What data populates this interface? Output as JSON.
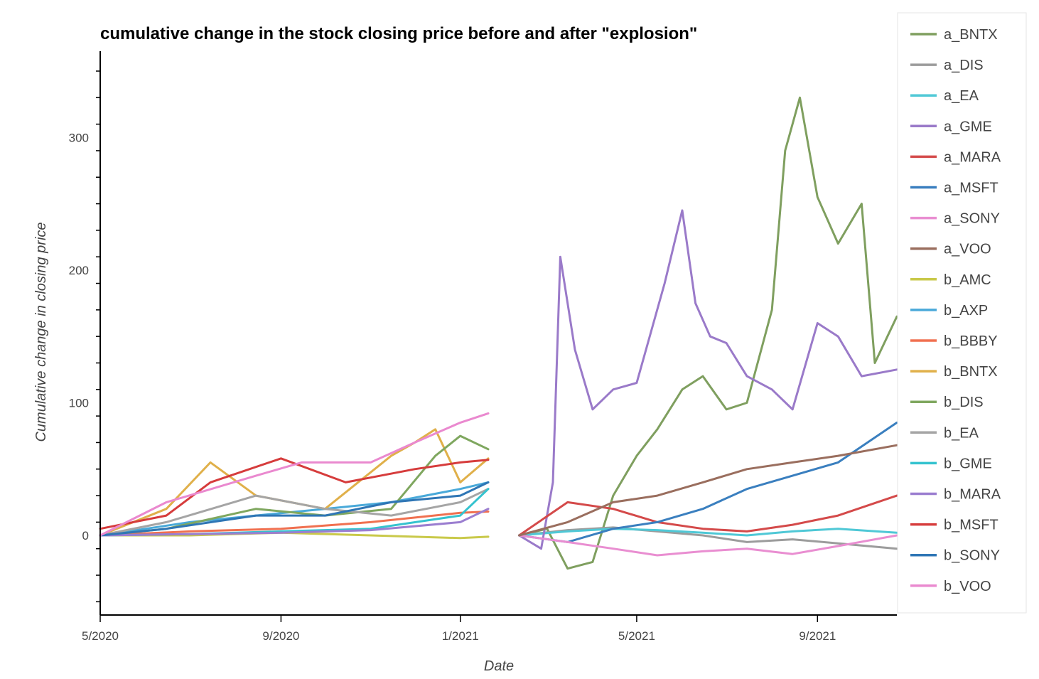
{
  "chart_data": {
    "type": "line",
    "title": "cumulative change in the stock closing price before and after \"explosion\"",
    "xlabel": "Date",
    "ylabel": "Cumulative change in closing price",
    "x_ticks": [
      "5/2020",
      "9/2020",
      "1/2021",
      "5/2021",
      "9/2021"
    ],
    "y_ticks": [
      0,
      100,
      200,
      300
    ],
    "xlim": [
      "2020-05-01",
      "2021-10-25"
    ],
    "ylim": [
      -60,
      365
    ],
    "legend": "right",
    "grid": false,
    "series": [
      {
        "name": "a_BNTX",
        "color": "#7f9f5f",
        "x": [
          "2021-02-10",
          "2021-03-01",
          "2021-03-15",
          "2021-04-01",
          "2021-04-15",
          "2021-05-01",
          "2021-05-15",
          "2021-06-01",
          "2021-06-15",
          "2021-07-01",
          "2021-07-15",
          "2021-08-01",
          "2021-08-10",
          "2021-08-20",
          "2021-09-01",
          "2021-09-15",
          "2021-10-01",
          "2021-10-10",
          "2021-10-25"
        ],
        "y": [
          0,
          5,
          -25,
          -20,
          30,
          60,
          80,
          110,
          120,
          95,
          100,
          170,
          290,
          330,
          255,
          220,
          250,
          130,
          165
        ]
      },
      {
        "name": "a_DIS",
        "color": "#9c9c9c",
        "x": [
          "2021-02-10",
          "2021-03-15",
          "2021-04-15",
          "2021-05-15",
          "2021-06-15",
          "2021-07-15",
          "2021-08-15",
          "2021-09-15",
          "2021-10-25"
        ],
        "y": [
          0,
          4,
          6,
          3,
          0,
          -5,
          -3,
          -6,
          -10
        ]
      },
      {
        "name": "a_EA",
        "color": "#4fc8d6",
        "x": [
          "2021-02-10",
          "2021-03-15",
          "2021-04-15",
          "2021-05-15",
          "2021-06-15",
          "2021-07-15",
          "2021-08-15",
          "2021-09-15",
          "2021-10-25"
        ],
        "y": [
          0,
          3,
          5,
          4,
          2,
          0,
          3,
          5,
          2
        ]
      },
      {
        "name": "a_GME",
        "color": "#9a7ac9",
        "x": [
          "2021-02-10",
          "2021-02-25",
          "2021-03-05",
          "2021-03-10",
          "2021-03-20",
          "2021-04-01",
          "2021-04-15",
          "2021-05-01",
          "2021-05-20",
          "2021-06-01",
          "2021-06-10",
          "2021-06-20",
          "2021-07-01",
          "2021-07-15",
          "2021-08-01",
          "2021-08-15",
          "2021-09-01",
          "2021-09-15",
          "2021-10-01",
          "2021-10-25"
        ],
        "y": [
          0,
          -10,
          40,
          210,
          140,
          95,
          110,
          115,
          190,
          245,
          175,
          150,
          145,
          120,
          110,
          95,
          160,
          150,
          120,
          125
        ]
      },
      {
        "name": "a_MARA",
        "color": "#d44a4a",
        "x": [
          "2021-02-10",
          "2021-03-15",
          "2021-04-15",
          "2021-05-15",
          "2021-06-15",
          "2021-07-15",
          "2021-08-15",
          "2021-09-15",
          "2021-10-25"
        ],
        "y": [
          0,
          25,
          20,
          10,
          5,
          3,
          8,
          15,
          30
        ]
      },
      {
        "name": "a_MSFT",
        "color": "#3a7fbf",
        "x": [
          "2021-02-10",
          "2021-03-15",
          "2021-04-15",
          "2021-05-15",
          "2021-06-15",
          "2021-07-15",
          "2021-08-15",
          "2021-09-15",
          "2021-10-25"
        ],
        "y": [
          0,
          -5,
          5,
          10,
          20,
          35,
          45,
          55,
          85
        ]
      },
      {
        "name": "a_SONY",
        "color": "#e98ed1",
        "x": [
          "2021-02-10",
          "2021-03-15",
          "2021-04-15",
          "2021-05-15",
          "2021-06-15",
          "2021-07-15",
          "2021-08-15",
          "2021-09-15",
          "2021-10-25"
        ],
        "y": [
          0,
          -5,
          -10,
          -15,
          -12,
          -10,
          -14,
          -8,
          0
        ]
      },
      {
        "name": "a_VOO",
        "color": "#9a6e5e",
        "x": [
          "2021-02-10",
          "2021-03-15",
          "2021-04-15",
          "2021-05-15",
          "2021-06-15",
          "2021-07-15",
          "2021-08-15",
          "2021-09-15",
          "2021-10-25"
        ],
        "y": [
          0,
          10,
          25,
          30,
          40,
          50,
          55,
          60,
          68
        ]
      },
      {
        "name": "b_AMC",
        "color": "#c9c94a",
        "x": [
          "2020-05-01",
          "2020-07-01",
          "2020-09-01",
          "2020-11-01",
          "2021-01-01",
          "2021-01-20"
        ],
        "y": [
          0,
          0,
          2,
          0,
          -2,
          -1
        ]
      },
      {
        "name": "b_AXP",
        "color": "#49a9d9",
        "x": [
          "2020-05-01",
          "2020-06-01",
          "2020-07-01",
          "2020-08-15",
          "2020-10-01",
          "2020-11-15",
          "2021-01-01",
          "2021-01-20"
        ],
        "y": [
          0,
          5,
          10,
          15,
          20,
          25,
          35,
          40
        ]
      },
      {
        "name": "b_BBBY",
        "color": "#f07050",
        "x": [
          "2020-05-01",
          "2020-07-01",
          "2020-09-01",
          "2020-11-01",
          "2021-01-01",
          "2021-01-20"
        ],
        "y": [
          0,
          3,
          5,
          10,
          17,
          18
        ]
      },
      {
        "name": "b_BNTX",
        "color": "#e0b04a",
        "x": [
          "2020-05-01",
          "2020-06-15",
          "2020-07-15",
          "2020-08-15",
          "2020-10-01",
          "2020-11-15",
          "2020-12-01",
          "2020-12-15",
          "2021-01-01",
          "2021-01-20"
        ],
        "y": [
          0,
          20,
          55,
          30,
          20,
          60,
          70,
          80,
          40,
          58
        ]
      },
      {
        "name": "b_DIS",
        "color": "#7fa75f",
        "x": [
          "2020-05-01",
          "2020-06-15",
          "2020-08-15",
          "2020-10-01",
          "2020-11-15",
          "2020-12-15",
          "2021-01-01",
          "2021-01-20"
        ],
        "y": [
          0,
          5,
          20,
          15,
          20,
          60,
          75,
          65
        ]
      },
      {
        "name": "b_EA",
        "color": "#a5a5a5",
        "x": [
          "2020-05-01",
          "2020-06-15",
          "2020-08-15",
          "2020-10-01",
          "2020-11-15",
          "2021-01-01",
          "2021-01-20"
        ],
        "y": [
          0,
          10,
          30,
          20,
          15,
          25,
          35
        ]
      },
      {
        "name": "b_GME",
        "color": "#35c3cf",
        "x": [
          "2020-05-01",
          "2020-07-01",
          "2020-09-01",
          "2020-11-01",
          "2021-01-01",
          "2021-01-20"
        ],
        "y": [
          0,
          1,
          3,
          5,
          15,
          35
        ]
      },
      {
        "name": "b_MARA",
        "color": "#9b7ed0",
        "x": [
          "2020-05-01",
          "2020-07-01",
          "2020-09-01",
          "2020-11-01",
          "2021-01-01",
          "2021-01-20"
        ],
        "y": [
          0,
          1,
          2,
          4,
          10,
          20
        ]
      },
      {
        "name": "b_MSFT",
        "color": "#d63c3c",
        "x": [
          "2020-05-01",
          "2020-06-15",
          "2020-07-15",
          "2020-09-01",
          "2020-10-15",
          "2020-12-01",
          "2021-01-01",
          "2021-01-20"
        ],
        "y": [
          5,
          15,
          40,
          58,
          40,
          50,
          55,
          57
        ]
      },
      {
        "name": "b_SONY",
        "color": "#2f76b5",
        "x": [
          "2020-05-01",
          "2020-06-15",
          "2020-08-15",
          "2020-10-01",
          "2020-11-15",
          "2021-01-01",
          "2021-01-20"
        ],
        "y": [
          0,
          5,
          15,
          15,
          25,
          30,
          40
        ]
      },
      {
        "name": "b_VOO",
        "color": "#ea89cf",
        "x": [
          "2020-05-01",
          "2020-06-15",
          "2020-08-15",
          "2020-09-15",
          "2020-11-01",
          "2020-12-01",
          "2021-01-01",
          "2021-01-20"
        ],
        "y": [
          0,
          25,
          45,
          55,
          55,
          70,
          85,
          92
        ]
      }
    ]
  }
}
